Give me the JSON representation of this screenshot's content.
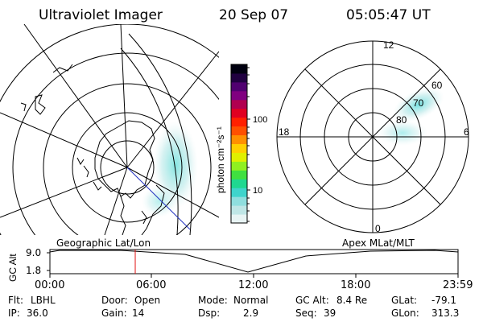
{
  "header": {
    "instrument": "Ultraviolet Imager",
    "date": "20 Sep 07",
    "time": "05:05:47 UT"
  },
  "colorbar": {
    "unit_label": "photon cm⁻²s⁻¹",
    "ticks": [
      "100",
      "10"
    ],
    "scale": "log",
    "colors": [
      "#e8f4f4",
      "#bfe6e6",
      "#8fdede",
      "#3fd4cc",
      "#20d890",
      "#40e040",
      "#90f020",
      "#e0f000",
      "#ffd000",
      "#ff9000",
      "#ff5000",
      "#ff2000",
      "#e00020",
      "#b00050",
      "#800080",
      "#500070",
      "#200040",
      "#000010"
    ]
  },
  "left_map": {
    "label": "Geographic Lat/Lon"
  },
  "right_map": {
    "label": "Apex MLat/MLT",
    "mlt_labels": [
      "12",
      "18",
      "6",
      "0"
    ],
    "mlat_labels": [
      "60",
      "70",
      "80"
    ]
  },
  "timeline": {
    "y_title": "GC Alt",
    "y_ticks": [
      "9.0",
      "1.8"
    ],
    "x_ticks": [
      "00:00",
      "06:00",
      "12:00",
      "18:00",
      "23:59"
    ],
    "marker_time": "05:05"
  },
  "status": {
    "flt_label": "Flt:",
    "flt_value": "LBHL",
    "ip_label": "IP:",
    "ip_value": "36.0",
    "door_label": "Door:",
    "door_value": "Open",
    "gain_label": "Gain:",
    "gain_value": "14",
    "mode_label": "Mode:",
    "mode_value": "Normal",
    "dsp_label": "Dsp:",
    "dsp_value": "2.9",
    "gcalt_label": "GC Alt:",
    "gcalt_value": "8.4 Re",
    "seq_label": "Seq:",
    "seq_value": "39",
    "glat_label": "GLat:",
    "glat_value": "-79.1",
    "glon_label": "GLon:",
    "glon_value": "313.3"
  }
}
